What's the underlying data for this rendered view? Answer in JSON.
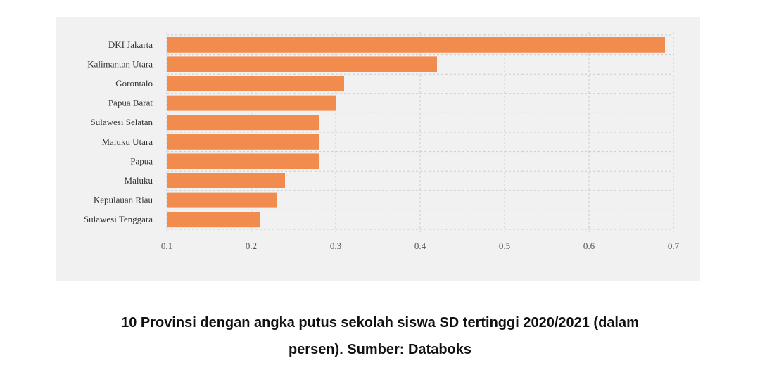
{
  "chart_data": {
    "type": "bar",
    "orientation": "horizontal",
    "categories": [
      "DKI Jakarta",
      "Kalimantan Utara",
      "Gorontalo",
      "Papua Barat",
      "Sulawesi Selatan",
      "Maluku Utara",
      "Papua",
      "Maluku",
      "Kepulauan Riau",
      "Sulawesi Tenggara"
    ],
    "values": [
      0.69,
      0.42,
      0.31,
      0.3,
      0.28,
      0.28,
      0.28,
      0.24,
      0.23,
      0.21
    ],
    "xlim": [
      0.1,
      0.7
    ],
    "xticks": [
      0.1,
      0.2,
      0.3,
      0.4,
      0.5,
      0.6,
      0.7
    ],
    "xtick_labels": [
      "0.1",
      "0.2",
      "0.3",
      "0.4",
      "0.5",
      "0.6",
      "0.7"
    ],
    "title": "",
    "xlabel": "",
    "ylabel": "",
    "grid": true,
    "bar_color": "#f28b4e",
    "background_color": "#f1f1f1"
  },
  "caption": {
    "line1": "10 Provinsi dengan angka putus sekolah siswa SD tertinggi 2020/2021  (dalam",
    "line2": "persen). Sumber: Databoks"
  }
}
